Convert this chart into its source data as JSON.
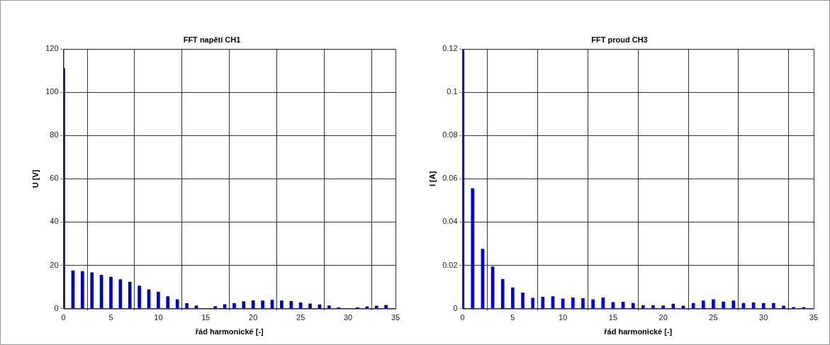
{
  "chart_data": [
    {
      "type": "bar",
      "title": "FFT napětí CH1",
      "xlabel": "řád harmonické [-]",
      "ylabel": "U [V]",
      "x": [
        0,
        1,
        2,
        3,
        4,
        5,
        6,
        7,
        8,
        9,
        10,
        11,
        12,
        13,
        14,
        15,
        16,
        17,
        18,
        19,
        20,
        21,
        22,
        23,
        24,
        25,
        26,
        27,
        28,
        29,
        30,
        31,
        32,
        33,
        34
      ],
      "values": [
        111,
        17.5,
        17.2,
        16.6,
        15.5,
        14.6,
        13.4,
        12.3,
        10.5,
        8.8,
        7.7,
        5.6,
        4.2,
        2.4,
        1.3,
        null,
        1.0,
        1.9,
        2.4,
        3.3,
        3.7,
        3.6,
        3.9,
        3.6,
        3.4,
        2.7,
        2.2,
        1.8,
        1.3,
        0.4,
        null,
        0.4,
        0.9,
        1.2,
        1.6
      ],
      "color": "#0000cc",
      "xlim": [
        0,
        35
      ],
      "xticks": [
        0,
        5,
        10,
        15,
        20,
        25,
        30,
        35
      ],
      "ylim": [
        0,
        120
      ],
      "yticks": [
        0,
        20,
        40,
        60,
        80,
        100,
        120
      ],
      "grid": true
    },
    {
      "type": "bar",
      "title": "FFT proud CH3",
      "xlabel": "řád harmonické [-]",
      "ylabel": "I [A]",
      "x": [
        0,
        1,
        2,
        3,
        4,
        5,
        6,
        7,
        8,
        9,
        10,
        11,
        12,
        13,
        14,
        15,
        16,
        17,
        18,
        19,
        20,
        21,
        22,
        23,
        24,
        25,
        26,
        27,
        28,
        29,
        30,
        31,
        32,
        33,
        34
      ],
      "values": [
        0.12,
        0.0555,
        0.0275,
        0.0193,
        0.0135,
        0.0097,
        0.0073,
        0.0048,
        0.0053,
        0.0056,
        0.0045,
        0.005,
        0.0047,
        0.0042,
        0.005,
        0.0029,
        0.003,
        0.0025,
        0.0015,
        0.0015,
        0.0013,
        0.0021,
        0.0012,
        0.0025,
        0.0036,
        0.0042,
        0.0031,
        0.0036,
        0.0025,
        0.0027,
        0.0025,
        0.0025,
        0.0012,
        0.0006,
        0.0006
      ],
      "color": "#0000ee",
      "xlim": [
        0,
        35
      ],
      "xticks": [
        0,
        5,
        10,
        15,
        20,
        25,
        30,
        35
      ],
      "ylim": [
        0,
        0.12
      ],
      "yticks": [
        0,
        0.02,
        0.04,
        0.06,
        0.08,
        0.1,
        0.12
      ],
      "grid": true
    }
  ]
}
